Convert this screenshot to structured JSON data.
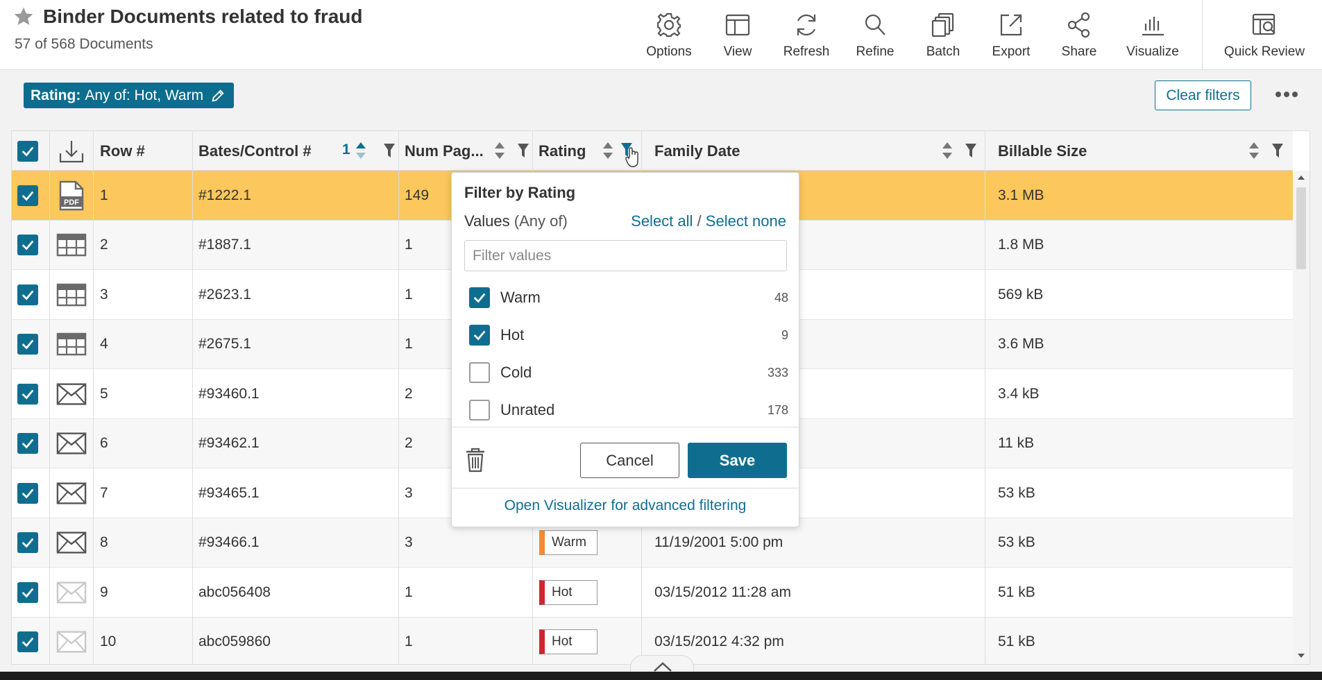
{
  "header": {
    "title": "Binder Documents related to fraud",
    "doc_count": "57 of 568 Documents",
    "toolbar": [
      {
        "label": "Options",
        "icon": "gear-icon"
      },
      {
        "label": "View",
        "icon": "layout-icon"
      },
      {
        "label": "Refresh",
        "icon": "refresh-icon"
      },
      {
        "label": "Refine",
        "icon": "search-icon"
      },
      {
        "label": "Batch",
        "icon": "batch-icon"
      },
      {
        "label": "Export",
        "icon": "export-icon"
      },
      {
        "label": "Share",
        "icon": "share-icon"
      },
      {
        "label": "Visualize",
        "icon": "bar-chart-icon"
      },
      {
        "label": "Quick Review",
        "icon": "quick-review-icon"
      }
    ]
  },
  "filterbar": {
    "chip_field": "Rating:",
    "chip_value": "Any of: Hot, Warm",
    "clear_label": "Clear filters"
  },
  "grid": {
    "columns": {
      "row": "Row #",
      "bates": "Bates/Control #",
      "bates_sort_order": "1",
      "pages": "Num Pag...",
      "rating": "Rating",
      "family_date": "Family Date",
      "billable": "Billable Size"
    },
    "rows": [
      {
        "row": "1",
        "type": "pdf",
        "bates": "#1222.1",
        "pages": "149",
        "rating": "",
        "date": "",
        "size": "3.1 MB"
      },
      {
        "row": "2",
        "type": "spreadsheet",
        "bates": "#1887.1",
        "pages": "1",
        "rating": "",
        "date": "",
        "size": "1.8 MB"
      },
      {
        "row": "3",
        "type": "spreadsheet",
        "bates": "#2623.1",
        "pages": "1",
        "rating": "",
        "date": "",
        "size": "569 kB"
      },
      {
        "row": "4",
        "type": "spreadsheet",
        "bates": "#2675.1",
        "pages": "1",
        "rating": "",
        "date": "",
        "size": "3.6 MB"
      },
      {
        "row": "5",
        "type": "email",
        "bates": "#93460.1",
        "pages": "2",
        "rating": "",
        "date": "",
        "size": "3.4 kB"
      },
      {
        "row": "6",
        "type": "email",
        "bates": "#93462.1",
        "pages": "2",
        "rating": "",
        "date": "",
        "size": "11 kB"
      },
      {
        "row": "7",
        "type": "email",
        "bates": "#93465.1",
        "pages": "3",
        "rating": "",
        "date": "",
        "size": "53 kB"
      },
      {
        "row": "8",
        "type": "email",
        "bates": "#93466.1",
        "pages": "3",
        "rating": "Warm",
        "date": "11/19/2001 5:00 pm",
        "size": "53 kB"
      },
      {
        "row": "9",
        "type": "email-light",
        "bates": "abc056408",
        "pages": "1",
        "rating": "Hot",
        "date": "03/15/2012 11:28 am",
        "size": "51 kB"
      },
      {
        "row": "10",
        "type": "email-light",
        "bates": "abc059860",
        "pages": "1",
        "rating": "Hot",
        "date": "03/15/2012 4:32 pm",
        "size": "51 kB"
      }
    ]
  },
  "popup": {
    "title": "Filter by Rating",
    "values_label": "Values",
    "values_sub": "(Any of)",
    "select_all": "Select all",
    "slash": "/",
    "select_none": "Select none",
    "filter_placeholder": "Filter values",
    "options": [
      {
        "label": "Warm",
        "count": "48",
        "checked": true
      },
      {
        "label": "Hot",
        "count": "9",
        "checked": true
      },
      {
        "label": "Cold",
        "count": "333",
        "checked": false
      },
      {
        "label": "Unrated",
        "count": "178",
        "checked": false
      }
    ],
    "cancel": "Cancel",
    "save": "Save",
    "visualizer_link": "Open Visualizer for advanced filtering"
  },
  "colors": {
    "accent": "#0f6e8f",
    "selected_row": "#fcc75c",
    "hot": "#d0252f",
    "warm": "#f28c33"
  }
}
